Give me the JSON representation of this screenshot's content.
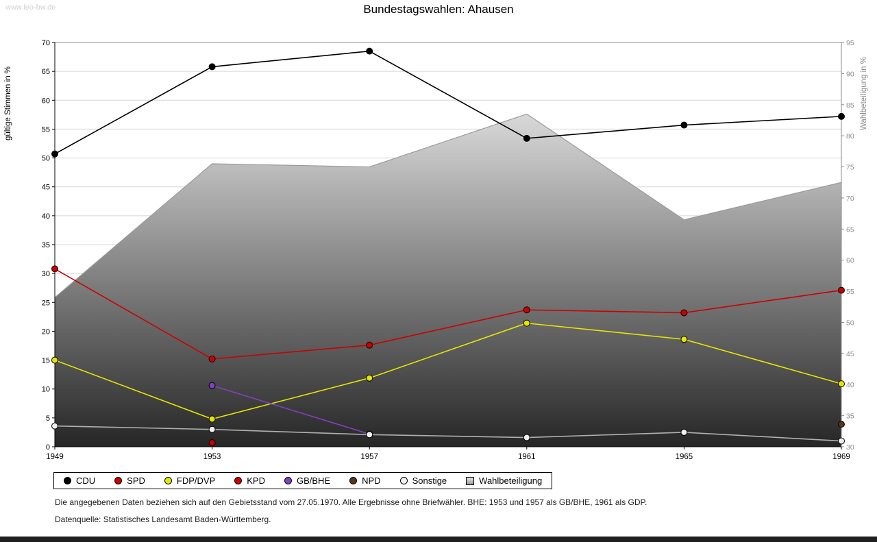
{
  "watermark": "www.leo-bw.de",
  "title": "Bundestagswahlen: Ahausen",
  "footer": {
    "note": "Die angegebenen Daten beziehen sich auf den Gebietsstand vom 27.05.1970. Alle Ergebnisse ohne Briefwähler. BHE: 1953 und 1957 als GB/BHE, 1961 als GDP.",
    "source": "Datenquelle: Statistisches Landesamt Baden-Württemberg."
  },
  "legend": {
    "items": [
      {
        "label": "CDU",
        "color": "#000000",
        "shape": "circle"
      },
      {
        "label": "SPD",
        "color": "#cc0000",
        "shape": "circle"
      },
      {
        "label": "FDP/DVP",
        "color": "#e6e600",
        "shape": "circle"
      },
      {
        "label": "KPD",
        "color": "#cc0000",
        "shape": "circle"
      },
      {
        "label": "GB/BHE",
        "color": "#8040c0",
        "shape": "circle"
      },
      {
        "label": "NPD",
        "color": "#5c3317",
        "shape": "circle"
      },
      {
        "label": "Sonstige",
        "color": "#f0f0f0",
        "shape": "circle"
      },
      {
        "label": "Wahlbeteiligung",
        "color": "#c0c0c0",
        "shape": "square"
      }
    ]
  },
  "chart_data": {
    "type": "line",
    "title": "Bundestagswahlen: Ahausen",
    "x": [
      1949,
      1953,
      1957,
      1961,
      1965,
      1969
    ],
    "left_axis": {
      "label": "gültige Stimmen in %",
      "min": 0,
      "max": 70,
      "tick_step": 5
    },
    "right_axis": {
      "label": "Wahlbeteiligung in %",
      "min": 30,
      "max": 95,
      "tick_step": 5
    },
    "grid": "horizontal",
    "legend_position": "bottom",
    "area": {
      "name": "Wahlbeteiligung",
      "axis": "right",
      "values": [
        54,
        75.5,
        75,
        83.5,
        66.5,
        72.5
      ],
      "fill_top": "#ffffff",
      "fill_bottom": "#262626",
      "edge_color": "#9a9a9a"
    },
    "series": [
      {
        "name": "CDU",
        "color": "#000000",
        "axis": "left",
        "values": [
          50.7,
          65.8,
          68.5,
          53.4,
          55.7,
          57.2
        ]
      },
      {
        "name": "SPD",
        "color": "#cc0000",
        "axis": "left",
        "values": [
          30.8,
          15.2,
          17.6,
          23.7,
          23.2,
          27.1
        ]
      },
      {
        "name": "FDP/DVP",
        "color": "#e6e600",
        "axis": "left",
        "values": [
          15.0,
          4.8,
          11.9,
          21.4,
          18.6,
          10.9
        ]
      },
      {
        "name": "KPD",
        "color": "#cc0000",
        "axis": "left",
        "values": [
          null,
          0.7,
          null,
          null,
          null,
          null
        ]
      },
      {
        "name": "GB/BHE",
        "color": "#8040c0",
        "axis": "left",
        "values": [
          null,
          10.6,
          2.2,
          null,
          null,
          null
        ]
      },
      {
        "name": "NPD",
        "color": "#5c3317",
        "axis": "left",
        "values": [
          null,
          null,
          null,
          null,
          null,
          3.9
        ]
      },
      {
        "name": "Sonstige",
        "color": "#b0b0b0",
        "marker_fill": "#f0f0f0",
        "axis": "left",
        "values": [
          3.6,
          3.0,
          2.1,
          1.6,
          2.5,
          1.0
        ]
      }
    ]
  }
}
